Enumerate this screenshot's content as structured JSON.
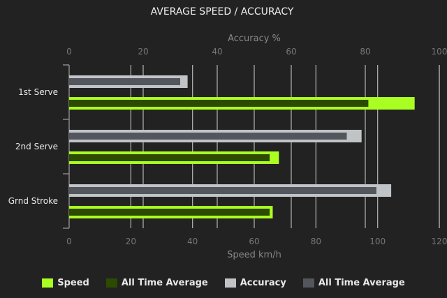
{
  "chart_data": {
    "type": "bar",
    "orientation": "horizontal",
    "title": "AVERAGE SPEED / ACCURACY",
    "categories": [
      "1st Serve",
      "2nd Serve",
      "Grnd Stroke"
    ],
    "top_axis": {
      "label": "Accuracy %",
      "range": [
        0,
        100
      ],
      "ticks": [
        "0",
        "20",
        "40",
        "60",
        "80",
        "100"
      ]
    },
    "bottom_axis": {
      "label": "Speed km/h",
      "range": [
        0,
        120
      ],
      "ticks": [
        "0",
        "20",
        "40",
        "60",
        "80",
        "100",
        "120"
      ]
    },
    "series": [
      {
        "name": "Speed",
        "axis": "bottom",
        "color": "#aaff22",
        "values": [
          112,
          68,
          66
        ]
      },
      {
        "name": "All Time Average",
        "axis": "bottom",
        "color": "#2d4a00",
        "values": [
          97,
          65,
          65
        ]
      },
      {
        "name": "Accuracy",
        "axis": "top",
        "color": "#c0c4c6",
        "values": [
          32,
          79,
          87
        ]
      },
      {
        "name": "All Time Average",
        "axis": "top",
        "color": "#53575d",
        "values": [
          30,
          75,
          83
        ]
      }
    ],
    "grid": true,
    "legend_position": "bottom"
  }
}
